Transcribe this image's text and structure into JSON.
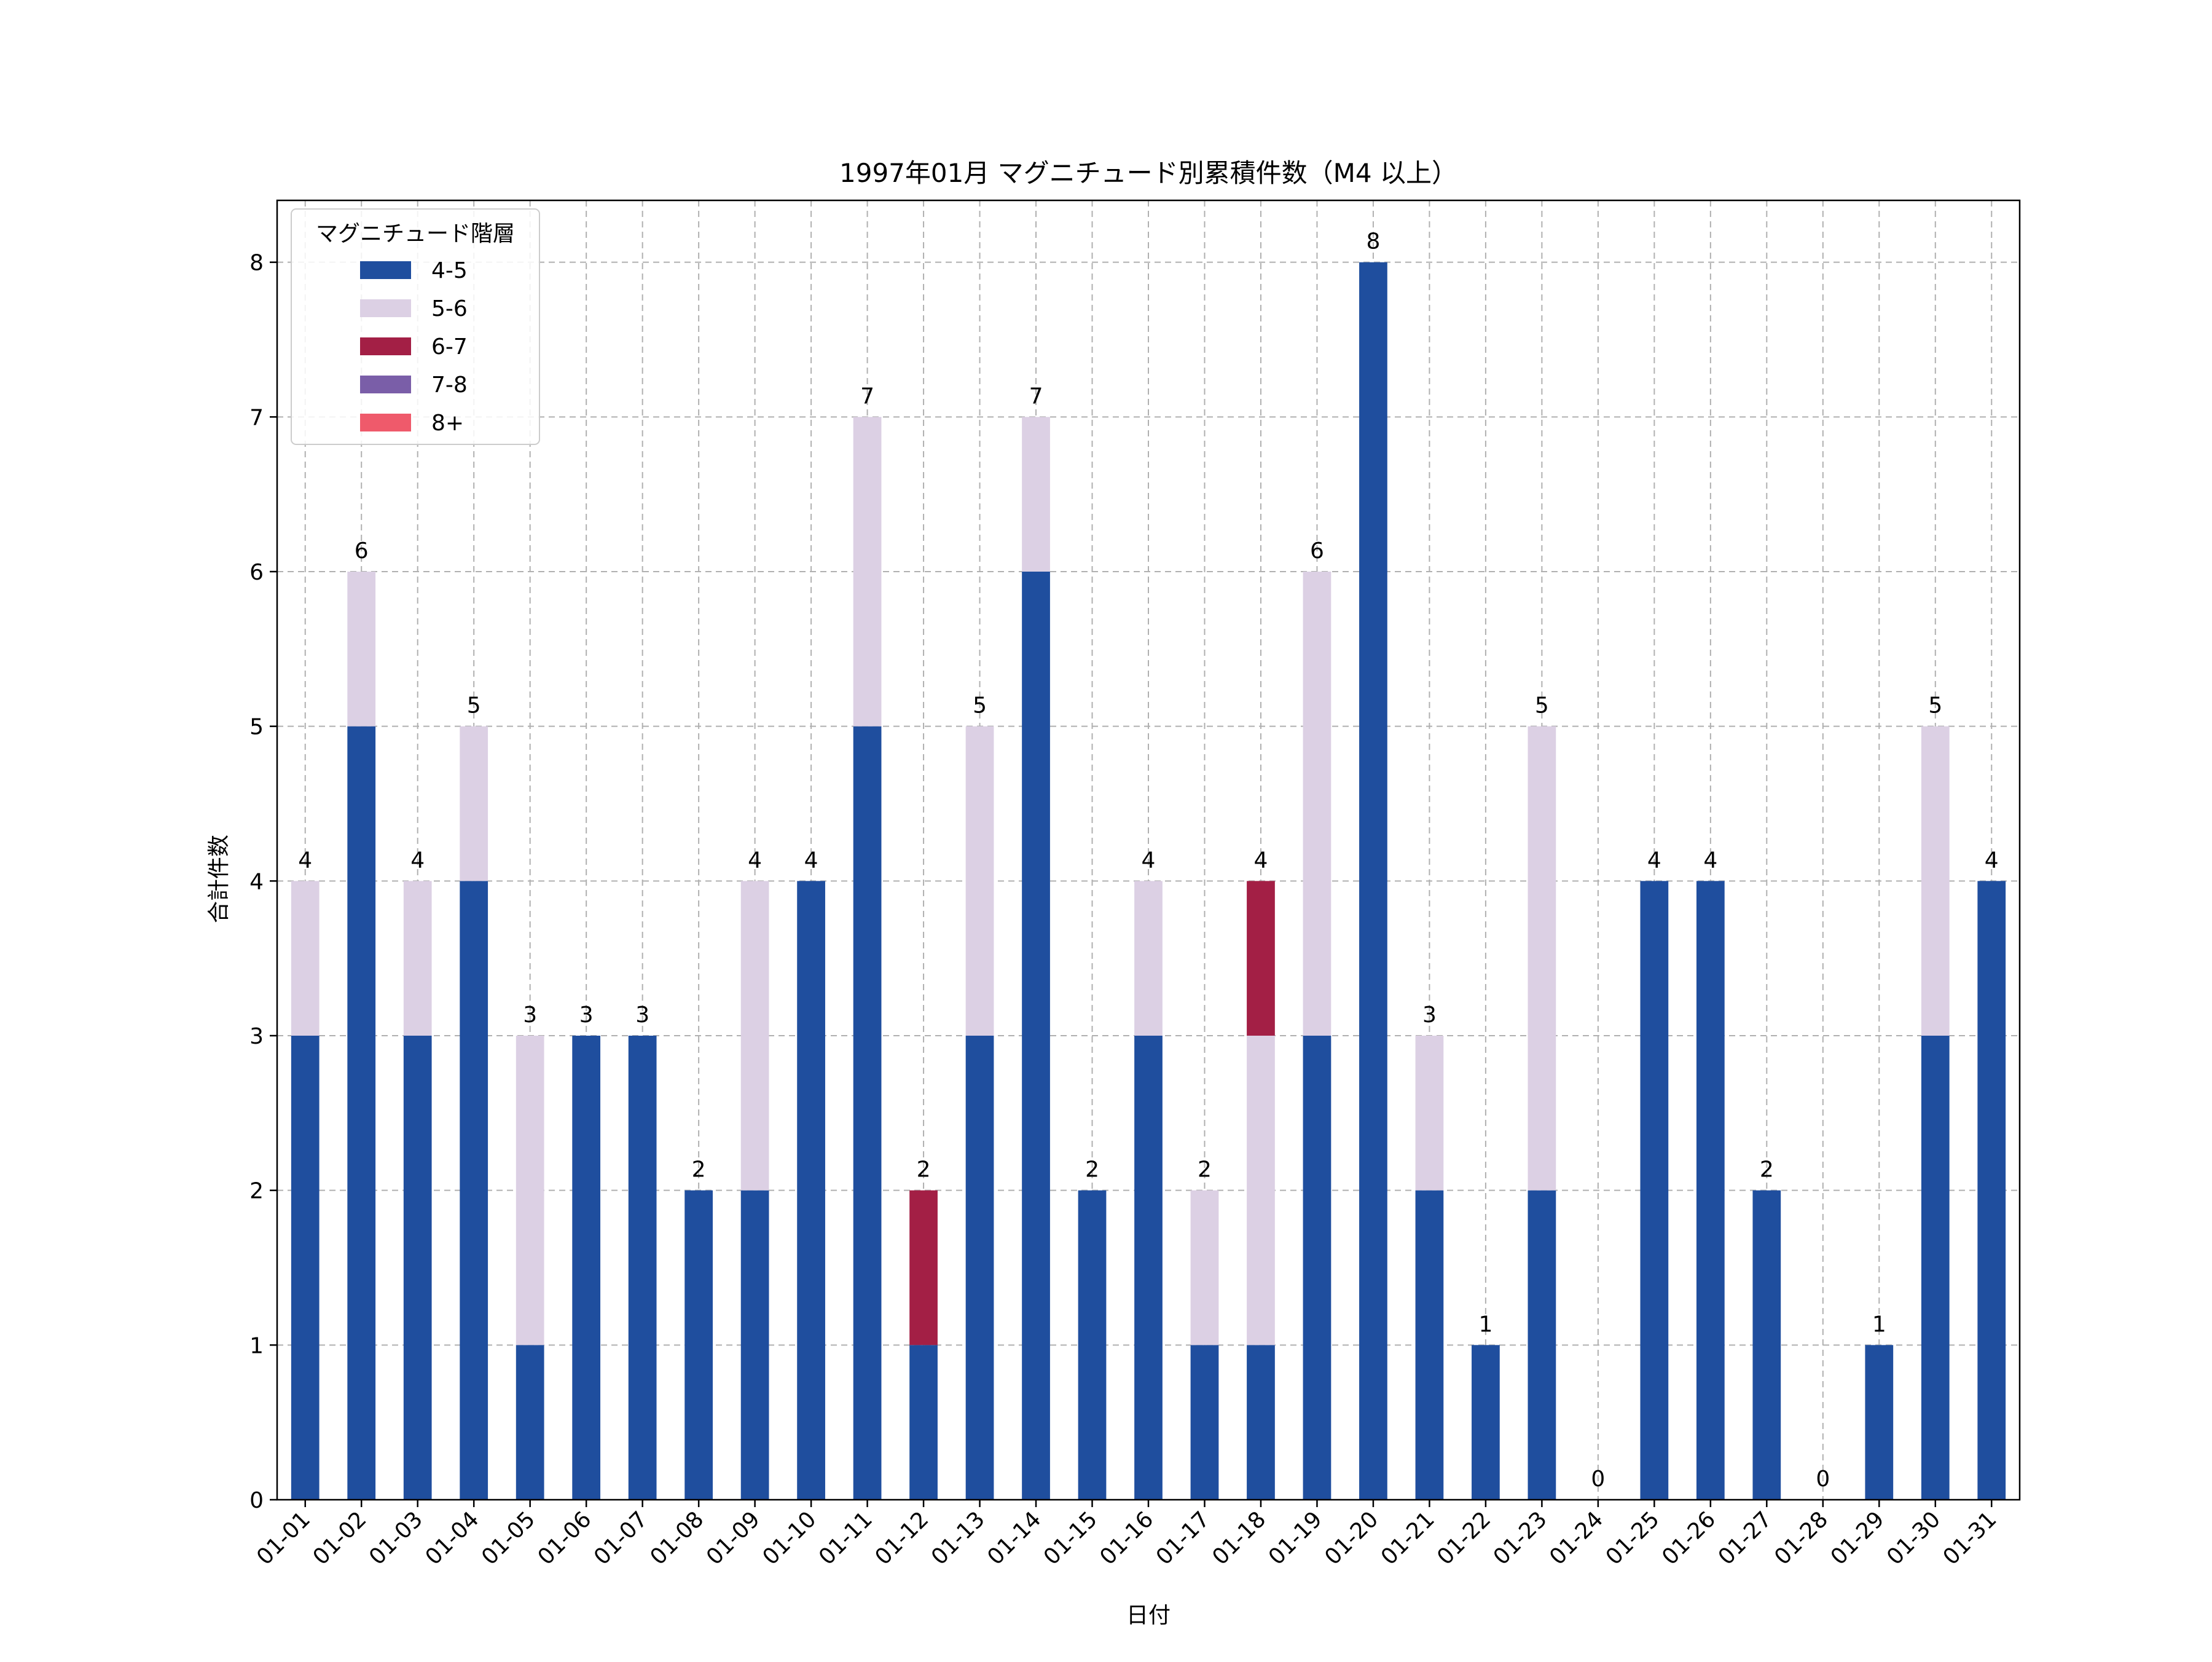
{
  "chart_data": {
    "type": "bar",
    "stacked": true,
    "title": "1997年01月 マグニチュード別累積件数（M4 以上）",
    "xlabel": "日付",
    "ylabel": "合計件数",
    "ylim": [
      0,
      8.4
    ],
    "yticks": [
      "0",
      "1",
      "2",
      "3",
      "4",
      "5",
      "6",
      "7",
      "8"
    ],
    "grid": true,
    "legend": {
      "title": "マグニチュード階層",
      "position": "top-left"
    },
    "categories": [
      "01-01",
      "01-02",
      "01-03",
      "01-04",
      "01-05",
      "01-06",
      "01-07",
      "01-08",
      "01-09",
      "01-10",
      "01-11",
      "01-12",
      "01-13",
      "01-14",
      "01-15",
      "01-16",
      "01-17",
      "01-18",
      "01-19",
      "01-20",
      "01-21",
      "01-22",
      "01-23",
      "01-24",
      "01-25",
      "01-26",
      "01-27",
      "01-28",
      "01-29",
      "01-30",
      "01-31"
    ],
    "series": [
      {
        "name": "4-5",
        "color": "#1f4e9e",
        "values": [
          3,
          5,
          3,
          4,
          1,
          3,
          3,
          2,
          2,
          4,
          5,
          1,
          3,
          6,
          2,
          3,
          1,
          1,
          3,
          8,
          2,
          1,
          2,
          0,
          4,
          4,
          2,
          0,
          1,
          3,
          4
        ]
      },
      {
        "name": "5-6",
        "color": "#dcd0e4",
        "values": [
          1,
          1,
          1,
          1,
          2,
          0,
          0,
          0,
          2,
          0,
          2,
          0,
          2,
          1,
          0,
          1,
          1,
          2,
          3,
          0,
          1,
          0,
          3,
          0,
          0,
          0,
          0,
          0,
          0,
          2,
          0
        ]
      },
      {
        "name": "6-7",
        "color": "#a31f45",
        "values": [
          0,
          0,
          0,
          0,
          0,
          0,
          0,
          0,
          0,
          0,
          0,
          1,
          0,
          0,
          0,
          0,
          0,
          1,
          0,
          0,
          0,
          0,
          0,
          0,
          0,
          0,
          0,
          0,
          0,
          0,
          0
        ]
      },
      {
        "name": "7-8",
        "color": "#7a5ea8",
        "values": [
          0,
          0,
          0,
          0,
          0,
          0,
          0,
          0,
          0,
          0,
          0,
          0,
          0,
          0,
          0,
          0,
          0,
          0,
          0,
          0,
          0,
          0,
          0,
          0,
          0,
          0,
          0,
          0,
          0,
          0,
          0
        ]
      },
      {
        "name": "8+",
        "color": "#ef5a6b",
        "values": [
          0,
          0,
          0,
          0,
          0,
          0,
          0,
          0,
          0,
          0,
          0,
          0,
          0,
          0,
          0,
          0,
          0,
          0,
          0,
          0,
          0,
          0,
          0,
          0,
          0,
          0,
          0,
          0,
          0,
          0,
          0
        ]
      }
    ],
    "totals": [
      "4",
      "6",
      "4",
      "5",
      "3",
      "3",
      "3",
      "2",
      "4",
      "4",
      "7",
      "2",
      "5",
      "7",
      "2",
      "4",
      "2",
      "4",
      "6",
      "8",
      "3",
      "1",
      "5",
      "0",
      "4",
      "4",
      "2",
      "0",
      "1",
      "5",
      "4"
    ]
  }
}
